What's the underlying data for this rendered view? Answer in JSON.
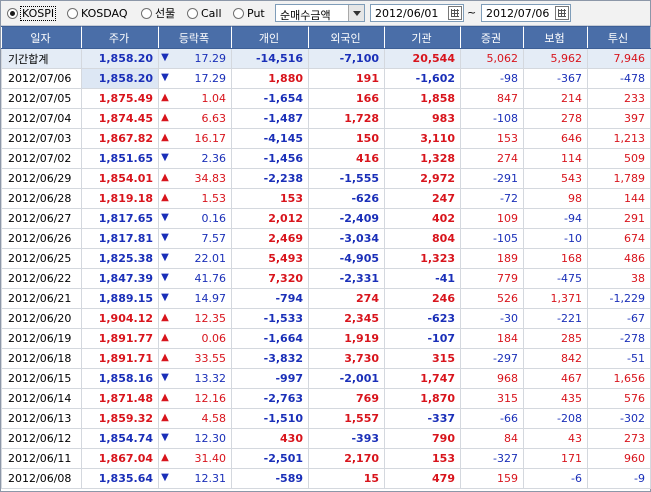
{
  "toolbar": {
    "markets": [
      {
        "label": "KOSPI",
        "selected": true
      },
      {
        "label": "KOSDAQ",
        "selected": false
      },
      {
        "label": "선물",
        "selected": false
      },
      {
        "label": "Call",
        "selected": false
      },
      {
        "label": "Put",
        "selected": false
      }
    ],
    "metric": "순매수금액",
    "start_date": "2012/06/01",
    "separator": "~",
    "end_date": "2012/07/06"
  },
  "columns": [
    "일자",
    "주가",
    "등락폭",
    "개인",
    "외국인",
    "기관",
    "증권",
    "보험",
    "투신"
  ],
  "colors": {
    "up": "#d8141c",
    "down": "#1a2fb8",
    "header": "#4a6ea8"
  },
  "rows": [
    {
      "date": "기간합계",
      "price": "1,858.20",
      "dir": "down",
      "change": "17.29",
      "indiv": "-14,516",
      "foreign": "-7,100",
      "inst": "20,544",
      "sec": "5,062",
      "ins": "5,962",
      "trust": "7,946"
    },
    {
      "date": "2012/07/06",
      "price": "1,858.20",
      "dir": "down",
      "change": "17.29",
      "indiv": "1,880",
      "foreign": "191",
      "inst": "-1,602",
      "sec": "-98",
      "ins": "-367",
      "trust": "-478"
    },
    {
      "date": "2012/07/05",
      "price": "1,875.49",
      "dir": "up",
      "change": "1.04",
      "indiv": "-1,654",
      "foreign": "166",
      "inst": "1,858",
      "sec": "847",
      "ins": "214",
      "trust": "233"
    },
    {
      "date": "2012/07/04",
      "price": "1,874.45",
      "dir": "up",
      "change": "6.63",
      "indiv": "-1,487",
      "foreign": "1,728",
      "inst": "983",
      "sec": "-108",
      "ins": "278",
      "trust": "397"
    },
    {
      "date": "2012/07/03",
      "price": "1,867.82",
      "dir": "up",
      "change": "16.17",
      "indiv": "-4,145",
      "foreign": "150",
      "inst": "3,110",
      "sec": "153",
      "ins": "646",
      "trust": "1,213"
    },
    {
      "date": "2012/07/02",
      "price": "1,851.65",
      "dir": "down",
      "change": "2.36",
      "indiv": "-1,456",
      "foreign": "416",
      "inst": "1,328",
      "sec": "274",
      "ins": "114",
      "trust": "509"
    },
    {
      "date": "2012/06/29",
      "price": "1,854.01",
      "dir": "up",
      "change": "34.83",
      "indiv": "-2,238",
      "foreign": "-1,555",
      "inst": "2,972",
      "sec": "-291",
      "ins": "543",
      "trust": "1,789"
    },
    {
      "date": "2012/06/28",
      "price": "1,819.18",
      "dir": "up",
      "change": "1.53",
      "indiv": "153",
      "foreign": "-626",
      "inst": "247",
      "sec": "-72",
      "ins": "98",
      "trust": "144"
    },
    {
      "date": "2012/06/27",
      "price": "1,817.65",
      "dir": "down",
      "change": "0.16",
      "indiv": "2,012",
      "foreign": "-2,409",
      "inst": "402",
      "sec": "109",
      "ins": "-94",
      "trust": "291"
    },
    {
      "date": "2012/06/26",
      "price": "1,817.81",
      "dir": "down",
      "change": "7.57",
      "indiv": "2,469",
      "foreign": "-3,034",
      "inst": "804",
      "sec": "-105",
      "ins": "-10",
      "trust": "674"
    },
    {
      "date": "2012/06/25",
      "price": "1,825.38",
      "dir": "down",
      "change": "22.01",
      "indiv": "5,493",
      "foreign": "-4,905",
      "inst": "1,323",
      "sec": "189",
      "ins": "168",
      "trust": "486"
    },
    {
      "date": "2012/06/22",
      "price": "1,847.39",
      "dir": "down",
      "change": "41.76",
      "indiv": "7,320",
      "foreign": "-2,331",
      "inst": "-41",
      "sec": "779",
      "ins": "-475",
      "trust": "38"
    },
    {
      "date": "2012/06/21",
      "price": "1,889.15",
      "dir": "down",
      "change": "14.97",
      "indiv": "-794",
      "foreign": "274",
      "inst": "246",
      "sec": "526",
      "ins": "1,371",
      "trust": "-1,229"
    },
    {
      "date": "2012/06/20",
      "price": "1,904.12",
      "dir": "up",
      "change": "12.35",
      "indiv": "-1,533",
      "foreign": "2,345",
      "inst": "-623",
      "sec": "-30",
      "ins": "-221",
      "trust": "-67"
    },
    {
      "date": "2012/06/19",
      "price": "1,891.77",
      "dir": "up",
      "change": "0.06",
      "indiv": "-1,664",
      "foreign": "1,919",
      "inst": "-107",
      "sec": "184",
      "ins": "285",
      "trust": "-278"
    },
    {
      "date": "2012/06/18",
      "price": "1,891.71",
      "dir": "up",
      "change": "33.55",
      "indiv": "-3,832",
      "foreign": "3,730",
      "inst": "315",
      "sec": "-297",
      "ins": "842",
      "trust": "-51"
    },
    {
      "date": "2012/06/15",
      "price": "1,858.16",
      "dir": "down",
      "change": "13.32",
      "indiv": "-997",
      "foreign": "-2,001",
      "inst": "1,747",
      "sec": "968",
      "ins": "467",
      "trust": "1,656"
    },
    {
      "date": "2012/06/14",
      "price": "1,871.48",
      "dir": "up",
      "change": "12.16",
      "indiv": "-2,763",
      "foreign": "769",
      "inst": "1,870",
      "sec": "315",
      "ins": "435",
      "trust": "576"
    },
    {
      "date": "2012/06/13",
      "price": "1,859.32",
      "dir": "up",
      "change": "4.58",
      "indiv": "-1,510",
      "foreign": "1,557",
      "inst": "-337",
      "sec": "-66",
      "ins": "-208",
      "trust": "-302"
    },
    {
      "date": "2012/06/12",
      "price": "1,854.74",
      "dir": "down",
      "change": "12.30",
      "indiv": "430",
      "foreign": "-393",
      "inst": "790",
      "sec": "84",
      "ins": "43",
      "trust": "273"
    },
    {
      "date": "2012/06/11",
      "price": "1,867.04",
      "dir": "up",
      "change": "31.40",
      "indiv": "-2,501",
      "foreign": "2,170",
      "inst": "153",
      "sec": "-327",
      "ins": "171",
      "trust": "960"
    },
    {
      "date": "2012/06/08",
      "price": "1,835.64",
      "dir": "down",
      "change": "12.31",
      "indiv": "-589",
      "foreign": "15",
      "inst": "479",
      "sec": "159",
      "ins": "-6",
      "trust": "-9"
    }
  ]
}
